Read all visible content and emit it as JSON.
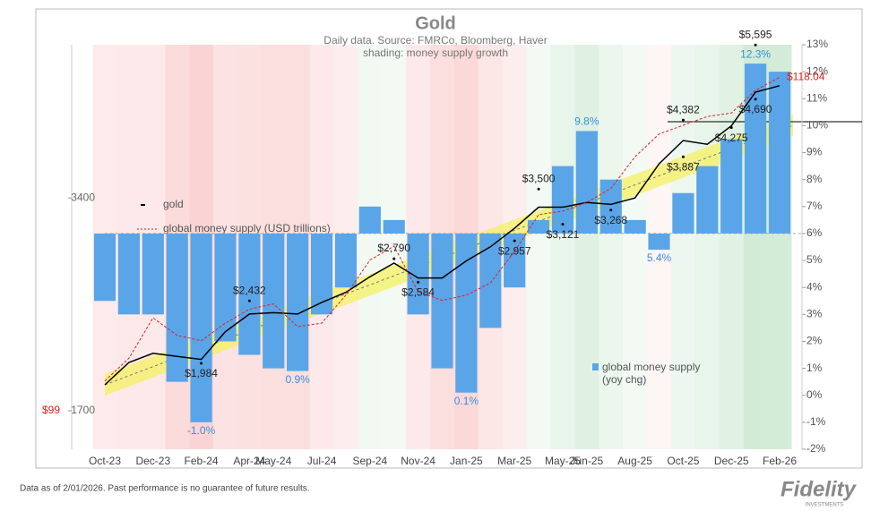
{
  "chart_data": {
    "type": "line",
    "title": "Gold",
    "subtitle": "Daily data.  Source: FMRCo, Bloomberg, Haver",
    "subtitle2": "shading: money supply growth",
    "footnote": "Data as of 2/01/2026. Past performance is no guarantee of future results.",
    "logo": "Fidelity",
    "logo_sub": "INVESTMENTS",
    "x": [
      "2023-10",
      "2023-11",
      "2023-12",
      "2024-01",
      "2024-02",
      "2024-03",
      "2024-04",
      "2024-05",
      "2024-06",
      "2024-07",
      "2024-08",
      "2024-09",
      "2024-10",
      "2024-11",
      "2024-12",
      "2025-01",
      "2025-02",
      "2025-03",
      "2025-04",
      "2025-05",
      "2025-06",
      "2025-07",
      "2025-08",
      "2025-09",
      "2025-10",
      "2025-11",
      "2025-12",
      "2026-01",
      "2026-02"
    ],
    "xlim": [
      "2023-10",
      "2026-02"
    ],
    "xticks": [
      {
        "value": "2023-10",
        "label": "Oct-23"
      },
      {
        "value": "2023-12",
        "label": "Dec-23"
      },
      {
        "value": "2024-02",
        "label": "Feb-24"
      },
      {
        "value": "2024-04",
        "label": "Apr-24"
      },
      {
        "value": "2024-05",
        "label": "May-24"
      },
      {
        "value": "2024-07",
        "label": "Jul-24"
      },
      {
        "value": "2024-09",
        "label": "Sep-24"
      },
      {
        "value": "2024-11",
        "label": "Nov-24"
      },
      {
        "value": "2025-01",
        "label": "Jan-25"
      },
      {
        "value": "2025-03",
        "label": "Mar-25"
      },
      {
        "value": "2025-05",
        "label": "May-25"
      },
      {
        "value": "2025-06",
        "label": "Jun-25"
      },
      {
        "value": "2025-08",
        "label": "Aug-25"
      },
      {
        "value": "2025-10",
        "label": "Oct-25"
      },
      {
        "value": "2025-12",
        "label": "Dec-25"
      },
      {
        "value": "2026-02",
        "label": "Feb-26"
      }
    ],
    "ylim": [
      1500,
      5600
    ],
    "yscale": "log",
    "yticks": [
      1700,
      3400
    ],
    "y2lim": [
      -2,
      13
    ],
    "y2ticks": [
      {
        "value": -2,
        "label": "-2%"
      },
      {
        "value": -1,
        "label": "-1%"
      },
      {
        "value": 0,
        "label": "0%"
      },
      {
        "value": 1,
        "label": "1%"
      },
      {
        "value": 2,
        "label": "2%"
      },
      {
        "value": 3,
        "label": "3%"
      },
      {
        "value": 4,
        "label": "4%"
      },
      {
        "value": 5,
        "label": "5%"
      },
      {
        "value": 6,
        "label": "6%"
      },
      {
        "value": 7,
        "label": "7%"
      },
      {
        "value": 8,
        "label": "8%"
      },
      {
        "value": 9,
        "label": "9%"
      },
      {
        "value": 10,
        "label": "10%"
      },
      {
        "value": 11,
        "label": "11%"
      },
      {
        "value": 12,
        "label": "12%"
      },
      {
        "value": 13,
        "label": "13%"
      }
    ],
    "y2_baseline": 6,
    "y3lim": [
      96.8,
      119.9
    ],
    "y3ticks": [
      {
        "value": 99,
        "label": "$99"
      }
    ],
    "series": [
      {
        "name": "gold",
        "color": "#000000",
        "values": [
          1850,
          1990,
          2050,
          2030,
          2010,
          2200,
          2330,
          2340,
          2330,
          2420,
          2500,
          2630,
          2750,
          2620,
          2620,
          2770,
          2900,
          3080,
          3300,
          3300,
          3350,
          3330,
          3400,
          3800,
          4100,
          4050,
          4300,
          4800,
          4900
        ]
      },
      {
        "name": "global money supply (USD trillions)",
        "color": "#e02020",
        "axis": "y3",
        "dashed": true,
        "values": [
          100.7,
          102.0,
          104.3,
          103.3,
          103.0,
          104.0,
          104.8,
          105.1,
          103.8,
          104.0,
          105.6,
          107.6,
          108.4,
          105.8,
          105.3,
          105.6,
          106.3,
          108.1,
          110.2,
          110.4,
          110.9,
          111.7,
          113.5,
          114.8,
          115.3,
          115.8,
          116.0,
          117.3,
          118.04
        ],
        "value_labels": [
          null,
          null,
          null,
          null,
          null,
          null,
          null,
          null,
          null,
          null,
          null,
          null,
          null,
          null,
          null,
          null,
          null,
          null,
          null,
          null,
          null,
          null,
          null,
          null,
          null,
          null,
          null,
          null,
          "$118.04"
        ]
      },
      {
        "name": "global money supply (yoy chg)",
        "color": "#5aa5e8",
        "axis": "y2",
        "type": "bar",
        "values": [
          3.5,
          3.0,
          3.0,
          0.5,
          -1.0,
          2.0,
          1.5,
          1.0,
          0.9,
          3.0,
          4.0,
          7.0,
          6.5,
          3.0,
          1.0,
          0.1,
          2.5,
          4.0,
          6.5,
          8.5,
          9.8,
          8.0,
          6.5,
          5.4,
          7.5,
          8.5,
          9.5,
          12.3,
          12.0
        ],
        "value_labels": [
          null,
          null,
          null,
          null,
          "-1.0%",
          null,
          null,
          null,
          "0.9%",
          null,
          null,
          null,
          null,
          null,
          null,
          "0.1%",
          null,
          null,
          null,
          null,
          "9.8%",
          null,
          null,
          "5.4%",
          null,
          null,
          null,
          "12.3%",
          null
        ]
      }
    ],
    "annotations": [
      {
        "x": "2026-01",
        "value": 5595,
        "label": "$5,595"
      },
      {
        "x": "2026-01",
        "value": 4690,
        "label": "$4,690"
      },
      {
        "x": "2025-10",
        "value": 4382,
        "label": "$4,382"
      },
      {
        "x": "2025-12",
        "value": 4275,
        "label": "$4,275"
      },
      {
        "x": "2025-10",
        "value": 3887,
        "label": "$3,887"
      },
      {
        "x": "2025-04",
        "value": 3500,
        "label": "$3,500"
      },
      {
        "x": "2025-07",
        "value": 3268,
        "label": "$3,268"
      },
      {
        "x": "2025-05",
        "value": 3121,
        "label": "$3,121"
      },
      {
        "x": "2025-03",
        "value": 2957,
        "label": "$2,957"
      },
      {
        "x": "2024-10",
        "value": 2790,
        "label": "$2,790"
      },
      {
        "x": "2024-11",
        "value": 2584,
        "label": "$2,584"
      },
      {
        "x": "2024-04",
        "value": 2432,
        "label": "$2,432"
      },
      {
        "x": "2024-02",
        "value": 1984,
        "label": "$1,984"
      }
    ]
  }
}
